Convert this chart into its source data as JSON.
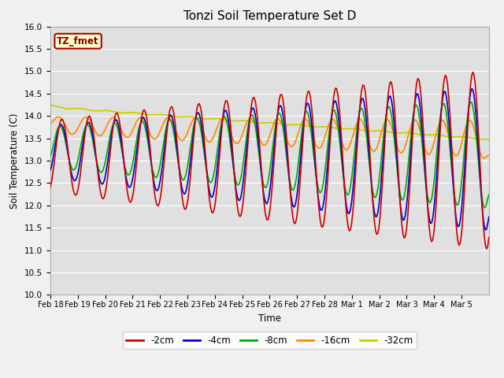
{
  "title": "Tonzi Soil Temperature Set D",
  "xlabel": "Time",
  "ylabel": "Soil Temperature (C)",
  "ylim": [
    10.0,
    16.0
  ],
  "yticks": [
    10.0,
    10.5,
    11.0,
    11.5,
    12.0,
    12.5,
    13.0,
    13.5,
    14.0,
    14.5,
    15.0,
    15.5,
    16.0
  ],
  "fig_bg_color": "#f0f0f0",
  "plot_bg_color": "#e0e0e0",
  "line_colors": {
    "-2cm": "#cc0000",
    "-4cm": "#0000cc",
    "-8cm": "#00aa00",
    "-16cm": "#ff8800",
    "-32cm": "#cccc00"
  },
  "annotation_text": "TZ_fmet",
  "annotation_bg": "#ffffcc",
  "annotation_border": "#aa0000",
  "x_tick_days": [
    18,
    19,
    20,
    21,
    22,
    23,
    24,
    25,
    26,
    27,
    28,
    29,
    30,
    31,
    32,
    33
  ],
  "x_tick_labels": [
    "Feb 18",
    "Feb 19",
    "Feb 20",
    "Feb 21",
    "Feb 22",
    "Feb 23",
    "Feb 24",
    "Feb 25",
    "Feb 26",
    "Feb 27",
    "Feb 28",
    "Mar 1",
    "Mar 2",
    "Mar 3",
    "Mar 4",
    "Mar 5"
  ]
}
